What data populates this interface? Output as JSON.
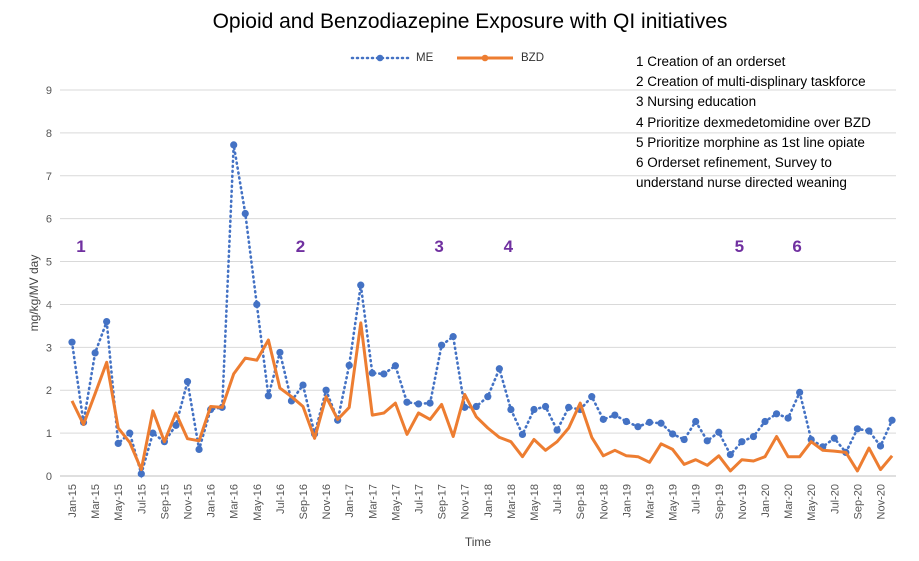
{
  "colors": {
    "me": "#4472c4",
    "bzd": "#ed7d31",
    "marker": "#7030a0",
    "grid": "#d9d9d9"
  },
  "annotations": {
    "lines": [
      "1 Creation of an orderset",
      "2 Creation of multi-displinary taskforce",
      "3 Nursing education",
      "4 Prioritize dexmedetomidine over BZD",
      "5 Prioritize morphine as 1st line opiate",
      "6 Orderset refinement, Survey to",
      "understand nurse directed weaning"
    ],
    "markers": [
      {
        "label": "1",
        "month": "Jan-15"
      },
      {
        "label": "2",
        "month": "Aug-16"
      },
      {
        "label": "3",
        "month": "Aug-17"
      },
      {
        "label": "4",
        "month": "Feb-18"
      },
      {
        "label": "5",
        "month": "Oct-19"
      },
      {
        "label": "6",
        "month": "Mar-20"
      }
    ]
  },
  "chart_data": {
    "type": "line",
    "title": "Opioid and Benzodiazepine Exposure with QI initiatives",
    "xlabel": "Time",
    "ylabel": "mg/kg/MV day",
    "ylim": [
      0,
      9
    ],
    "yticks": [
      0,
      1,
      2,
      3,
      4,
      5,
      6,
      7,
      8,
      9
    ],
    "grid": true,
    "legend_position": "top",
    "x": [
      "Jan-15",
      "Feb-15",
      "Mar-15",
      "Apr-15",
      "May-15",
      "Jun-15",
      "Jul-15",
      "Aug-15",
      "Sep-15",
      "Oct-15",
      "Nov-15",
      "Dec-15",
      "Jan-16",
      "Feb-16",
      "Mar-16",
      "Apr-16",
      "May-16",
      "Jun-16",
      "Jul-16",
      "Aug-16",
      "Sep-16",
      "Oct-16",
      "Nov-16",
      "Dec-16",
      "Jan-17",
      "Feb-17",
      "Mar-17",
      "Apr-17",
      "May-17",
      "Jun-17",
      "Jul-17",
      "Aug-17",
      "Sep-17",
      "Oct-17",
      "Nov-17",
      "Dec-17",
      "Jan-18",
      "Feb-18",
      "Mar-18",
      "Apr-18",
      "May-18",
      "Jun-18",
      "Jul-18",
      "Aug-18",
      "Sep-18",
      "Oct-18",
      "Nov-18",
      "Dec-18",
      "Jan-19",
      "Feb-19",
      "Mar-19",
      "Apr-19",
      "May-19",
      "Jun-19",
      "Jul-19",
      "Aug-19",
      "Sep-19",
      "Oct-19",
      "Nov-19",
      "Dec-19",
      "Jan-20",
      "Feb-20",
      "Mar-20",
      "Apr-20",
      "May-20",
      "Jun-20",
      "Jul-20",
      "Aug-20",
      "Sep-20",
      "Oct-20",
      "Nov-20",
      "Dec-20"
    ],
    "xtick_labels": [
      "Jan-15",
      "Mar-15",
      "May-15",
      "Jul-15",
      "Sep-15",
      "Nov-15",
      "Jan-16",
      "Mar-16",
      "May-16",
      "Jul-16",
      "Sep-16",
      "Nov-16",
      "Jan-17",
      "Mar-17",
      "May-17",
      "Jul-17",
      "Sep-17",
      "Nov-17",
      "Jan-18",
      "Mar-18",
      "May-18",
      "Jul-18",
      "Sep-18",
      "Nov-18",
      "Jan-19",
      "Mar-19",
      "May-19",
      "Jul-19",
      "Sep-19",
      "Nov-19",
      "Jan-20",
      "Mar-20",
      "May-20",
      "Jul-20",
      "Sep-20",
      "Nov-20"
    ],
    "series": [
      {
        "name": "ME",
        "style": "dotted-markers",
        "values": [
          3.12,
          1.25,
          2.87,
          3.6,
          0.76,
          1.0,
          0.05,
          1.0,
          0.8,
          1.18,
          2.2,
          0.62,
          1.55,
          1.6,
          7.72,
          6.12,
          4.0,
          1.87,
          2.88,
          1.75,
          2.12,
          0.98,
          2.0,
          1.3,
          2.58,
          4.45,
          2.4,
          2.38,
          2.57,
          1.72,
          1.68,
          1.7,
          3.05,
          3.25,
          1.6,
          1.62,
          1.85,
          2.5,
          1.55,
          0.97,
          1.55,
          1.62,
          1.07,
          1.6,
          1.55,
          1.85,
          1.32,
          1.42,
          1.27,
          1.15,
          1.25,
          1.23,
          0.98,
          0.85,
          1.27,
          0.82,
          1.02,
          0.5,
          0.8,
          0.92,
          1.27,
          1.45,
          1.35,
          1.95,
          0.85,
          0.68,
          0.88,
          0.55,
          1.1,
          1.05,
          0.7,
          1.3
        ]
      },
      {
        "name": "BZD",
        "style": "solid",
        "values": [
          1.75,
          1.2,
          1.92,
          2.65,
          1.12,
          0.78,
          0.15,
          1.52,
          0.8,
          1.47,
          0.87,
          0.82,
          1.62,
          1.6,
          2.38,
          2.75,
          2.7,
          3.17,
          2.05,
          1.85,
          1.62,
          0.88,
          1.85,
          1.32,
          1.6,
          3.57,
          1.42,
          1.47,
          1.7,
          0.97,
          1.47,
          1.32,
          1.67,
          0.92,
          1.9,
          1.38,
          1.12,
          0.9,
          0.8,
          0.45,
          0.85,
          0.6,
          0.8,
          1.12,
          1.7,
          0.9,
          0.47,
          0.6,
          0.47,
          0.45,
          0.32,
          0.75,
          0.62,
          0.27,
          0.38,
          0.25,
          0.47,
          0.12,
          0.38,
          0.35,
          0.45,
          0.92,
          0.45,
          0.45,
          0.8,
          0.6,
          0.58,
          0.55,
          0.12,
          0.65,
          0.15,
          0.47
        ]
      }
    ]
  }
}
